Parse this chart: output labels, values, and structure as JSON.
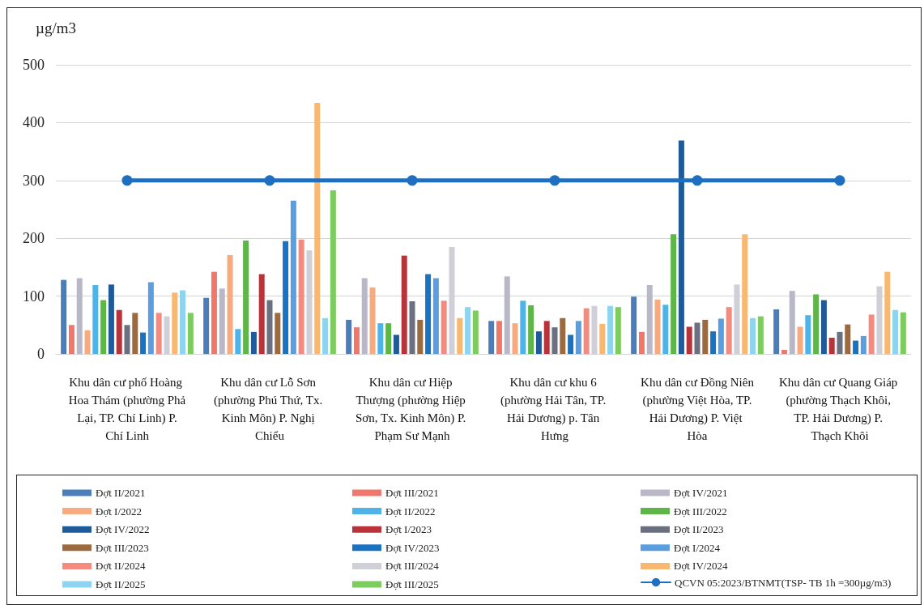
{
  "chart_data": {
    "type": "bar",
    "ylabel": "µg/m3",
    "categories": [
      "Khu dân cư phố Hoàng Hoa Thám (phường Phả Lại, TP. Chí Linh) P. Chí Linh",
      "Khu dân cư Lỗ Sơn (phường Phú Thứ, Tx. Kinh Môn) P. Nghị Chiểu",
      "Khu dân cư Hiệp Thượng (phường Hiệp Sơn, Tx. Kinh Môn) P. Phạm Sư Mạnh",
      "Khu dân cư khu 6 (phường Hải Tân, TP. Hải Dương) p. Tân Hưng",
      "Khu dân cư Đồng Niên (phường Việt Hòa, TP. Hải Dương) P. Việt Hòa",
      "Khu dân cư Quang Giáp (phường Thạch Khôi, TP. Hải Dương) P. Thạch Khôi"
    ],
    "series": [
      {
        "name": "Đợt II/2021",
        "color": "#4a7ebb",
        "values": [
          128,
          97,
          59,
          57,
          99,
          77
        ]
      },
      {
        "name": "Đợt III/2021",
        "color": "#f0776b",
        "values": [
          50,
          142,
          46,
          57,
          38,
          7
        ]
      },
      {
        "name": "Đợt IV/2021",
        "color": "#b8b8c8",
        "values": [
          131,
          113,
          131,
          134,
          119,
          109
        ]
      },
      {
        "name": "Đợt I/2022",
        "color": "#f7ab7e",
        "values": [
          41,
          171,
          115,
          53,
          94,
          47
        ]
      },
      {
        "name": "Đợt II/2022",
        "color": "#4fb3e8",
        "values": [
          119,
          43,
          53,
          92,
          85,
          67
        ]
      },
      {
        "name": "Đợt III/2022",
        "color": "#5eb548",
        "values": [
          93,
          196,
          53,
          84,
          207,
          103
        ]
      },
      {
        "name": "Đợt IV/2022",
        "color": "#1f5a99",
        "values": [
          120,
          38,
          33,
          39,
          369,
          93
        ]
      },
      {
        "name": "Đợt I/2023",
        "color": "#b8343a",
        "values": [
          76,
          138,
          170,
          57,
          47,
          28
        ]
      },
      {
        "name": "Đợt II/2023",
        "color": "#6a7080",
        "values": [
          50,
          93,
          91,
          46,
          54,
          38
        ]
      },
      {
        "name": "Đợt III/2023",
        "color": "#9d6a3e",
        "values": [
          71,
          71,
          59,
          62,
          59,
          51
        ]
      },
      {
        "name": "Đợt IV/2023",
        "color": "#1a73c0",
        "values": [
          37,
          195,
          138,
          33,
          39,
          23
        ]
      },
      {
        "name": "Đợt I/2024",
        "color": "#5a9ee0",
        "values": [
          124,
          265,
          131,
          57,
          61,
          31
        ]
      },
      {
        "name": "Đợt II/2024",
        "color": "#f58a7e",
        "values": [
          71,
          198,
          92,
          79,
          81,
          68
        ]
      },
      {
        "name": "Đợt III/2024",
        "color": "#cfcfd8",
        "values": [
          65,
          179,
          185,
          83,
          120,
          117
        ]
      },
      {
        "name": "Đợt IV/2024",
        "color": "#f9b872",
        "values": [
          106,
          434,
          62,
          52,
          207,
          142
        ]
      },
      {
        "name": "Đợt II/2025",
        "color": "#8ed3f0",
        "values": [
          110,
          62,
          81,
          83,
          62,
          76
        ]
      },
      {
        "name": "Đợt III/2025",
        "color": "#7dcc5e",
        "values": [
          71,
          283,
          75,
          81,
          65,
          72
        ]
      },
      {
        "name": "QCVN 05:2023/BTNMT(TSP- TB 1h =300µg/m3)",
        "type": "line",
        "color": "#1f6fc0",
        "values": [
          300,
          300,
          300,
          300,
          300,
          300
        ]
      }
    ],
    "ylim": [
      0,
      500
    ],
    "yticks": [
      0,
      100,
      200,
      300,
      400,
      500
    ],
    "grid": "y",
    "legend": "bottom",
    "marker": "circle",
    "line_style": "solid"
  }
}
